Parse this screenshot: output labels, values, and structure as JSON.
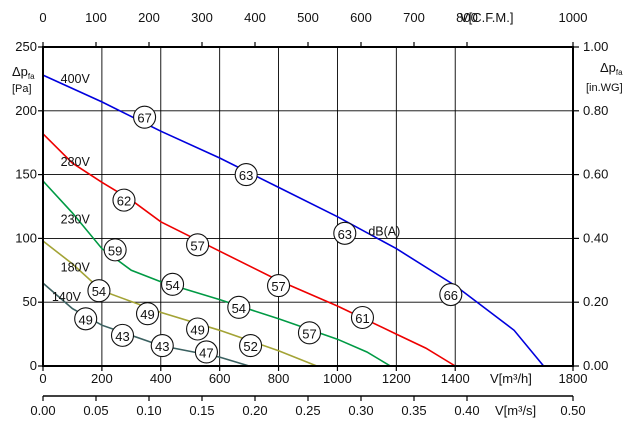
{
  "chart_data": {
    "type": "line",
    "axes": {
      "bottom_primary": {
        "unit_label": "V[m³/h]",
        "range": [
          0,
          1800
        ],
        "ticks": [
          0,
          200,
          400,
          600,
          800,
          1000,
          1200,
          1400,
          1800
        ]
      },
      "bottom_secondary": {
        "unit_label": "V[m³/s]",
        "range": [
          0,
          0.5
        ],
        "ticks": [
          "0.00",
          "0.05",
          "0.10",
          "0.15",
          "0.20",
          "0.25",
          "0.30",
          "0.35",
          "0.40",
          "0.50"
        ]
      },
      "top": {
        "unit_label": "V[C.F.M.]",
        "range": [
          0,
          1000
        ],
        "ticks": [
          "0",
          "100",
          "200",
          "300",
          "400",
          "500",
          "600",
          "700",
          "800",
          "1000"
        ]
      },
      "left": {
        "label_line1": "Δp",
        "label_sub": "fa",
        "label_unit": "[Pa]",
        "range": [
          0,
          250
        ],
        "ticks": [
          0,
          50,
          100,
          150,
          200,
          250
        ]
      },
      "right": {
        "label_line1": "Δp",
        "label_sub": "fa",
        "label_unit": "[in.WG]",
        "range": [
          0,
          1
        ],
        "ticks": [
          "0.00",
          "0.20",
          "0.40",
          "0.60",
          "0.80",
          "1.00"
        ]
      }
    },
    "grid": true,
    "series": [
      {
        "name": "400V",
        "color": "#0000dd",
        "x": [
          0,
          200,
          400,
          600,
          800,
          1000,
          1200,
          1400,
          1600,
          1700
        ],
        "y": [
          228,
          207,
          184,
          163,
          140,
          117,
          92,
          63,
          28,
          0
        ]
      },
      {
        "name": "280V",
        "color": "#ee0000",
        "x": [
          0,
          100,
          200,
          300,
          400,
          600,
          800,
          1000,
          1200,
          1300,
          1400
        ],
        "y": [
          182,
          159,
          144,
          130,
          113,
          90,
          67,
          47,
          25,
          14,
          0
        ]
      },
      {
        "name": "230V",
        "color": "#009a44",
        "x": [
          0,
          100,
          200,
          300,
          400,
          600,
          800,
          1000,
          1100,
          1180
        ],
        "y": [
          145,
          120,
          92,
          75,
          66,
          52,
          37,
          21,
          11,
          0
        ]
      },
      {
        "name": "180V",
        "color": "#a3a335",
        "x": [
          0,
          100,
          200,
          400,
          600,
          800,
          930
        ],
        "y": [
          98,
          80,
          59,
          42,
          28,
          12,
          0
        ]
      },
      {
        "name": "140V",
        "color": "#3a6060",
        "x": [
          0,
          100,
          200,
          400,
          600,
          700
        ],
        "y": [
          65,
          45,
          32,
          16,
          7,
          0
        ]
      }
    ],
    "series_labels": [
      {
        "text": "400V",
        "x": 60,
        "y": 225
      },
      {
        "text": "280V",
        "x": 60,
        "y": 160
      },
      {
        "text": "230V",
        "x": 60,
        "y": 115
      },
      {
        "text": "180V",
        "x": 60,
        "y": 77
      },
      {
        "text": "140V",
        "x": 30,
        "y": 54
      }
    ],
    "annotation": {
      "text": "dB(A)",
      "x": 1105,
      "y": 104
    },
    "noise_levels": [
      {
        "label": "67",
        "x": 345,
        "y": 195
      },
      {
        "label": "63",
        "x": 690,
        "y": 150
      },
      {
        "label": "63",
        "x": 1025,
        "y": 104
      },
      {
        "label": "66",
        "x": 1385,
        "y": 56
      },
      {
        "label": "62",
        "x": 275,
        "y": 130
      },
      {
        "label": "57",
        "x": 525,
        "y": 95
      },
      {
        "label": "57",
        "x": 800,
        "y": 63
      },
      {
        "label": "61",
        "x": 1085,
        "y": 38
      },
      {
        "label": "59",
        "x": 245,
        "y": 91
      },
      {
        "label": "54",
        "x": 440,
        "y": 64
      },
      {
        "label": "54",
        "x": 665,
        "y": 46
      },
      {
        "label": "57",
        "x": 905,
        "y": 26
      },
      {
        "label": "54",
        "x": 190,
        "y": 59
      },
      {
        "label": "49",
        "x": 355,
        "y": 41
      },
      {
        "label": "49",
        "x": 525,
        "y": 29
      },
      {
        "label": "52",
        "x": 705,
        "y": 16
      },
      {
        "label": "49",
        "x": 145,
        "y": 37
      },
      {
        "label": "43",
        "x": 270,
        "y": 24
      },
      {
        "label": "43",
        "x": 405,
        "y": 16
      },
      {
        "label": "47",
        "x": 555,
        "y": 11
      }
    ]
  }
}
